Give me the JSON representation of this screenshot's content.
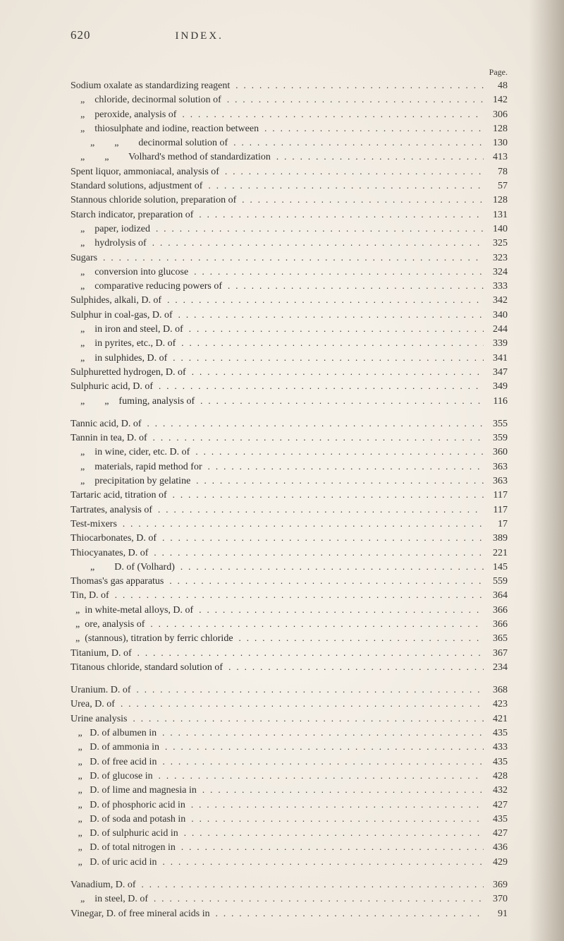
{
  "header": {
    "page_number": "620",
    "title": "INDEX.",
    "page_label": "Page."
  },
  "typography": {
    "body_fontsize": 14,
    "header_fontsize": 17,
    "line_height": 1.45,
    "text_color": "#2a2a2a",
    "background_color": "#f5f0e8"
  },
  "entries": [
    {
      "label": "Sodium oxalate as standardizing reagent",
      "indent": 0,
      "page": "48"
    },
    {
      "label": "    „    chloride, decinormal solution of",
      "indent": 0,
      "page": "142"
    },
    {
      "label": "    „    peroxide, analysis of",
      "indent": 0,
      "page": "306"
    },
    {
      "label": "    „    thiosulphate and iodine, reaction between",
      "indent": 0,
      "page": "128"
    },
    {
      "label": "        „        „        decinormal solution of",
      "indent": 0,
      "page": "130"
    },
    {
      "label": "    „        „        Volhard's method of standardization",
      "indent": 0,
      "page": "413"
    },
    {
      "label": "Spent liquor, ammoniacal, analysis of",
      "indent": 0,
      "page": "78"
    },
    {
      "label": "Standard solutions, adjustment of",
      "indent": 0,
      "page": "57"
    },
    {
      "label": "Stannous chloride solution, preparation of",
      "indent": 0,
      "page": "128"
    },
    {
      "label": "Starch indicator, preparation of",
      "indent": 0,
      "page": "131"
    },
    {
      "label": "    „    paper, iodized",
      "indent": 0,
      "page": "140"
    },
    {
      "label": "    „    hydrolysis of",
      "indent": 0,
      "page": "325"
    },
    {
      "label": "Sugars",
      "indent": 0,
      "page": "323"
    },
    {
      "label": "    „    conversion into glucose",
      "indent": 0,
      "page": "324"
    },
    {
      "label": "    „    comparative reducing powers of",
      "indent": 0,
      "page": "333"
    },
    {
      "label": "Sulphides, alkali, D. of",
      "indent": 0,
      "page": "342"
    },
    {
      "label": "Sulphur in coal-gas, D. of",
      "indent": 0,
      "page": "340"
    },
    {
      "label": "    „    in iron and steel, D. of",
      "indent": 0,
      "page": "244"
    },
    {
      "label": "    „    in pyrites, etc., D. of",
      "indent": 0,
      "page": "339"
    },
    {
      "label": "    „    in sulphides, D. of",
      "indent": 0,
      "page": "341"
    },
    {
      "label": "Sulphuretted hydrogen, D. of",
      "indent": 0,
      "page": "347"
    },
    {
      "label": "Sulphuric acid, D. of",
      "indent": 0,
      "page": "349"
    },
    {
      "label": "    „        „    fuming, analysis of",
      "indent": 0,
      "page": "116"
    },
    {
      "gap": true
    },
    {
      "label": "Tannic acid, D. of",
      "indent": 0,
      "page": "355"
    },
    {
      "label": "Tannin in tea, D. of",
      "indent": 0,
      "page": "359"
    },
    {
      "label": "    „    in wine, cider, etc. D. of",
      "indent": 0,
      "page": "360"
    },
    {
      "label": "    „    materials, rapid method for",
      "indent": 0,
      "page": "363"
    },
    {
      "label": "    „    precipitation by gelatine",
      "indent": 0,
      "page": "363"
    },
    {
      "label": "Tartaric acid, titration of",
      "indent": 0,
      "page": "117"
    },
    {
      "label": "Tartrates, analysis of",
      "indent": 0,
      "page": "117"
    },
    {
      "label": "Test-mixers",
      "indent": 0,
      "page": "17"
    },
    {
      "label": "Thiocarbonates, D. of",
      "indent": 0,
      "page": "389"
    },
    {
      "label": "Thiocyanates, D. of",
      "indent": 0,
      "page": "221"
    },
    {
      "label": "        „        D. of (Volhard)",
      "indent": 0,
      "page": "145"
    },
    {
      "label": "Thomas's gas apparatus",
      "indent": 0,
      "page": "559"
    },
    {
      "label": "Tin, D. of",
      "indent": 0,
      "page": "364"
    },
    {
      "label": "  „  in white-metal alloys, D. of",
      "indent": 0,
      "page": "366"
    },
    {
      "label": "  „  ore, analysis of",
      "indent": 0,
      "page": "366"
    },
    {
      "label": "  „  (stannous), titration by ferric chloride",
      "indent": 0,
      "page": "365"
    },
    {
      "label": "Titanium, D. of",
      "indent": 0,
      "page": "367"
    },
    {
      "label": "Titanous chloride, standard solution of",
      "indent": 0,
      "page": "234"
    },
    {
      "gap": true
    },
    {
      "label": "Uranium. D. of",
      "indent": 0,
      "page": "368"
    },
    {
      "label": "Urea, D. of",
      "indent": 0,
      "page": "423"
    },
    {
      "label": "Urine analysis",
      "indent": 0,
      "page": "421"
    },
    {
      "label": "   „   D. of albumen in",
      "indent": 0,
      "page": "435"
    },
    {
      "label": "   „   D. of ammonia in",
      "indent": 0,
      "page": "433"
    },
    {
      "label": "   „   D. of free acid in",
      "indent": 0,
      "page": "435"
    },
    {
      "label": "   „   D. of glucose in",
      "indent": 0,
      "page": "428"
    },
    {
      "label": "   „   D. of lime and magnesia in",
      "indent": 0,
      "page": "432"
    },
    {
      "label": "   „   D. of phosphoric acid in",
      "indent": 0,
      "page": "427"
    },
    {
      "label": "   „   D. of soda and potash in",
      "indent": 0,
      "page": "435"
    },
    {
      "label": "   „   D. of sulphuric acid in",
      "indent": 0,
      "page": "427"
    },
    {
      "label": "   „   D. of total nitrogen in",
      "indent": 0,
      "page": "436"
    },
    {
      "label": "   „   D. of uric acid in",
      "indent": 0,
      "page": "429"
    },
    {
      "gap": true
    },
    {
      "label": "Vanadium, D. of",
      "indent": 0,
      "page": "369"
    },
    {
      "label": "    „    in steel, D. of",
      "indent": 0,
      "page": "370"
    },
    {
      "label": "Vinegar, D. of free mineral acids in",
      "indent": 0,
      "page": "91"
    }
  ]
}
